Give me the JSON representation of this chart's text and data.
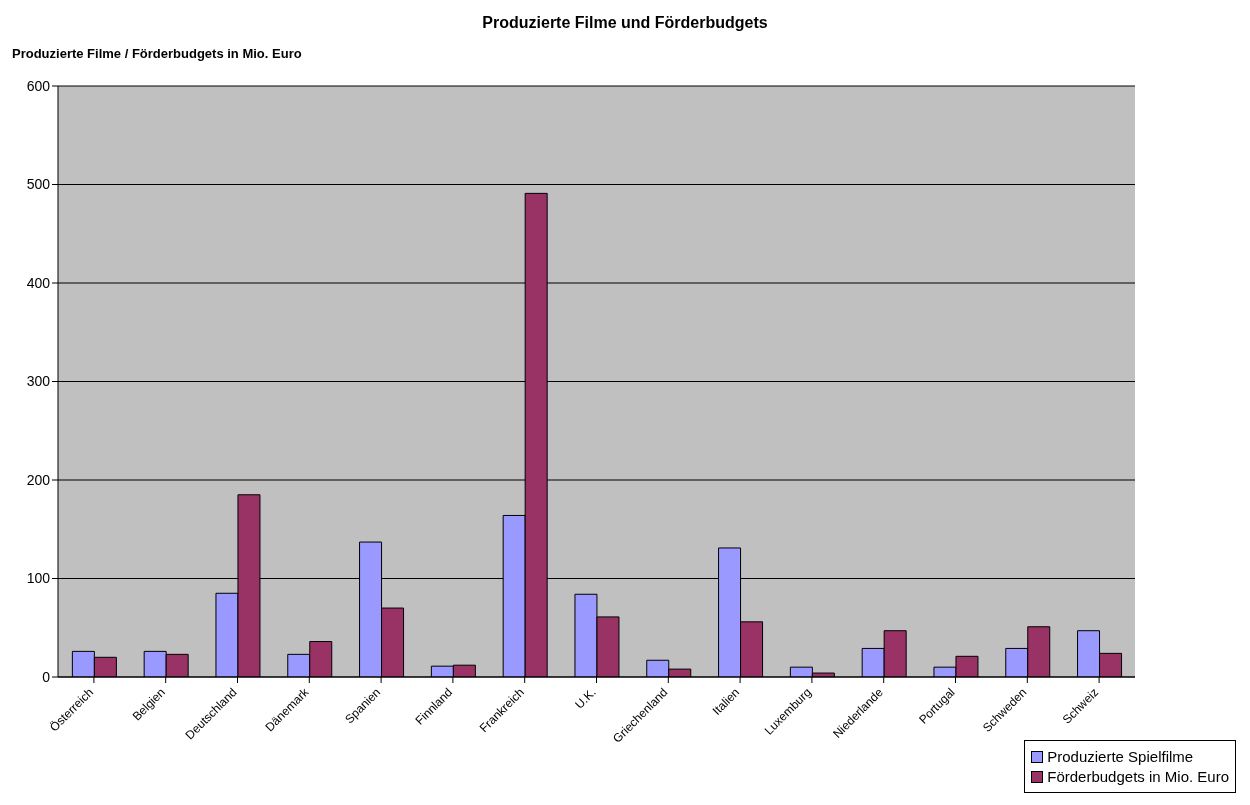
{
  "chart_data": {
    "type": "bar",
    "title": "Produzierte Filme und Förderbudgets",
    "ylabel": "Produzierte Filme / Förderbudgets in Mio. Euro",
    "categories": [
      "Österreich",
      "Belgien",
      "Deutschland",
      "Dänemark",
      "Spanien",
      "Finnland",
      "Frankreich",
      "U.K.",
      "Griechenland",
      "Italien",
      "Luxemburg",
      "Niederlande",
      "Portugal",
      "Schweden",
      "Schweiz"
    ],
    "series": [
      {
        "name": "Produzierte Spielfilme",
        "color": "#9999ff",
        "values": [
          26,
          26,
          85,
          23,
          137,
          11,
          164,
          84,
          17,
          131,
          10,
          29,
          10,
          29,
          47
        ]
      },
      {
        "name": "Förderbudgets in Mio. Euro",
        "color": "#993366",
        "values": [
          20,
          23,
          185,
          36,
          70,
          12,
          491,
          61,
          8,
          56,
          4,
          47,
          21,
          51,
          24
        ]
      }
    ],
    "ylim": [
      0,
      600
    ],
    "yticks": [
      0,
      100,
      200,
      300,
      400,
      500,
      600
    ],
    "grid": "y",
    "legend": "bottom right"
  }
}
